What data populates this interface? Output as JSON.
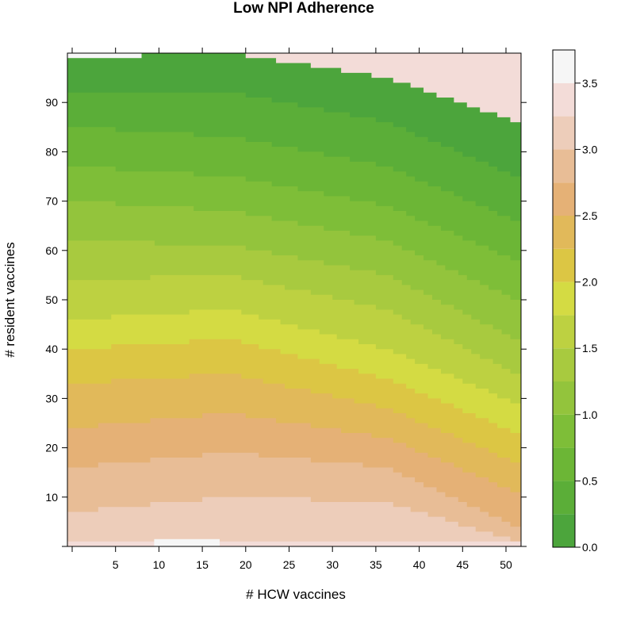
{
  "chart_data": {
    "type": "heatmap",
    "title": "Low NPI Adherence",
    "xlabel": "# HCW vaccines",
    "ylabel": "# resident vaccines",
    "xlim": [
      0,
      51
    ],
    "ylim": [
      0,
      100
    ],
    "x_ticks": [
      "5",
      "10",
      "15",
      "20",
      "25",
      "30",
      "35",
      "40",
      "45",
      "50"
    ],
    "y_ticks": [
      "10",
      "20",
      "30",
      "40",
      "50",
      "60",
      "70",
      "80",
      "90"
    ],
    "colorbar": {
      "ticks": [
        "0.0",
        "0.5",
        "1.0",
        "1.5",
        "2.0",
        "2.5",
        "3.0",
        "3.5"
      ],
      "range": [
        0,
        3.5
      ],
      "levels": [
        {
          "from": 0.0,
          "to": 0.25,
          "color": "#4CA53C"
        },
        {
          "from": 0.25,
          "to": 0.5,
          "color": "#5BAE38"
        },
        {
          "from": 0.5,
          "to": 0.75,
          "color": "#6CB636"
        },
        {
          "from": 0.75,
          "to": 1.0,
          "color": "#7EBE38"
        },
        {
          "from": 1.0,
          "to": 1.25,
          "color": "#93C43C"
        },
        {
          "from": 1.25,
          "to": 1.5,
          "color": "#A8CA3F"
        },
        {
          "from": 1.5,
          "to": 1.75,
          "color": "#BDD141"
        },
        {
          "from": 1.75,
          "to": 2.0,
          "color": "#D4DB43"
        },
        {
          "from": 2.0,
          "to": 2.25,
          "color": "#DCC644"
        },
        {
          "from": 2.25,
          "to": 2.5,
          "color": "#E1B95A"
        },
        {
          "from": 2.5,
          "to": 2.75,
          "color": "#E5B176"
        },
        {
          "from": 2.75,
          "to": 3.0,
          "color": "#E8BD96"
        },
        {
          "from": 3.0,
          "to": 3.25,
          "color": "#EDCDBA"
        },
        {
          "from": 3.25,
          "to": 3.5,
          "color": "#F3DCD8"
        },
        {
          "from": 3.5,
          "to": 3.75,
          "color": "#F6F6F6"
        }
      ]
    },
    "contour_boundaries": [
      {
        "level": 3.5,
        "y": [
          1,
          1,
          1,
          1
        ]
      },
      {
        "level": 3.25,
        "y": [
          7,
          10,
          9,
          1
        ]
      },
      {
        "level": 3.0,
        "y": [
          16,
          19,
          16,
          4
        ]
      },
      {
        "level": 2.75,
        "y": [
          24,
          27,
          22,
          11
        ]
      },
      {
        "level": 2.5,
        "y": [
          33,
          35,
          28,
          17
        ]
      },
      {
        "level": 2.25,
        "y": [
          40,
          42,
          34,
          23
        ]
      },
      {
        "level": 2.0,
        "y": [
          46,
          48,
          40,
          29
        ]
      },
      {
        "level": 1.75,
        "y": [
          54,
          55,
          48,
          35
        ]
      },
      {
        "level": 1.5,
        "y": [
          62,
          61,
          55,
          42
        ]
      },
      {
        "level": 1.25,
        "y": [
          70,
          68,
          62,
          50
        ]
      },
      {
        "level": 1.0,
        "y": [
          77,
          75,
          69,
          58
        ]
      },
      {
        "level": 0.75,
        "y": [
          85,
          83,
          77,
          66
        ]
      },
      {
        "level": 0.5,
        "y": [
          92,
          92,
          86,
          75
        ]
      },
      {
        "level": 0.25,
        "y": [
          100,
          100,
          95,
          86
        ]
      }
    ],
    "contour_x": [
      0,
      18,
      36,
      51
    ],
    "peaks": [
      {
        "level": 3.5,
        "x": [
          0,
          8
        ],
        "y": [
          99,
          100
        ]
      },
      {
        "level": 3.5,
        "x": [
          10,
          17
        ],
        "y": [
          0,
          1
        ]
      }
    ]
  }
}
